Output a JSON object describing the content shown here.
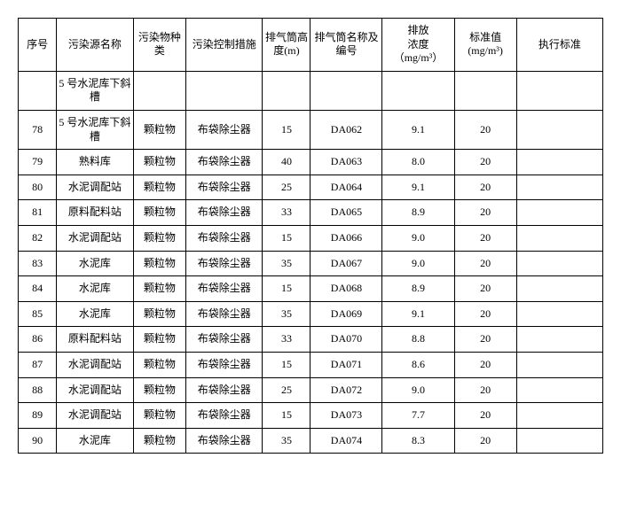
{
  "headers": {
    "seq": "序号",
    "name": "污染源名称",
    "type": "污染物种类",
    "ctrl": "污染控制措施",
    "height": "排气筒高度(m)",
    "code": "排气筒名称及编号",
    "conc_l1": "排放",
    "conc_l2": "浓度",
    "conc_unit": "（mg/m³）",
    "std_l1": "标准值",
    "std_unit": "(mg/m³)",
    "exec": "执行标准"
  },
  "first_name": "5 号水泥库下斜槽",
  "rows": [
    {
      "seq": "78",
      "name": "5 号水泥库下斜槽",
      "type": "颗粒物",
      "ctrl": "布袋除尘器",
      "height": "15",
      "code": "DA062",
      "conc": "9.1",
      "std": "20",
      "exec": ""
    },
    {
      "seq": "79",
      "name": "熟料库",
      "type": "颗粒物",
      "ctrl": "布袋除尘器",
      "height": "40",
      "code": "DA063",
      "conc": "8.0",
      "std": "20",
      "exec": ""
    },
    {
      "seq": "80",
      "name": "水泥调配站",
      "type": "颗粒物",
      "ctrl": "布袋除尘器",
      "height": "25",
      "code": "DA064",
      "conc": "9.1",
      "std": "20",
      "exec": ""
    },
    {
      "seq": "81",
      "name": "原料配料站",
      "type": "颗粒物",
      "ctrl": "布袋除尘器",
      "height": "33",
      "code": "DA065",
      "conc": "8.9",
      "std": "20",
      "exec": ""
    },
    {
      "seq": "82",
      "name": "水泥调配站",
      "type": "颗粒物",
      "ctrl": "布袋除尘器",
      "height": "15",
      "code": "DA066",
      "conc": "9.0",
      "std": "20",
      "exec": ""
    },
    {
      "seq": "83",
      "name": "水泥库",
      "type": "颗粒物",
      "ctrl": "布袋除尘器",
      "height": "35",
      "code": "DA067",
      "conc": "9.0",
      "std": "20",
      "exec": ""
    },
    {
      "seq": "84",
      "name": "水泥库",
      "type": "颗粒物",
      "ctrl": "布袋除尘器",
      "height": "15",
      "code": "DA068",
      "conc": "8.9",
      "std": "20",
      "exec": ""
    },
    {
      "seq": "85",
      "name": "水泥库",
      "type": "颗粒物",
      "ctrl": "布袋除尘器",
      "height": "35",
      "code": "DA069",
      "conc": "9.1",
      "std": "20",
      "exec": ""
    },
    {
      "seq": "86",
      "name": "原料配料站",
      "type": "颗粒物",
      "ctrl": "布袋除尘器",
      "height": "33",
      "code": "DA070",
      "conc": "8.8",
      "std": "20",
      "exec": ""
    },
    {
      "seq": "87",
      "name": "水泥调配站",
      "type": "颗粒物",
      "ctrl": "布袋除尘器",
      "height": "15",
      "code": "DA071",
      "conc": "8.6",
      "std": "20",
      "exec": ""
    },
    {
      "seq": "88",
      "name": "水泥调配站",
      "type": "颗粒物",
      "ctrl": "布袋除尘器",
      "height": "25",
      "code": "DA072",
      "conc": "9.0",
      "std": "20",
      "exec": ""
    },
    {
      "seq": "89",
      "name": "水泥调配站",
      "type": "颗粒物",
      "ctrl": "布袋除尘器",
      "height": "15",
      "code": "DA073",
      "conc": "7.7",
      "std": "20",
      "exec": ""
    },
    {
      "seq": "90",
      "name": "水泥库",
      "type": "颗粒物",
      "ctrl": "布袋除尘器",
      "height": "35",
      "code": "DA074",
      "conc": "8.3",
      "std": "20",
      "exec": ""
    }
  ]
}
